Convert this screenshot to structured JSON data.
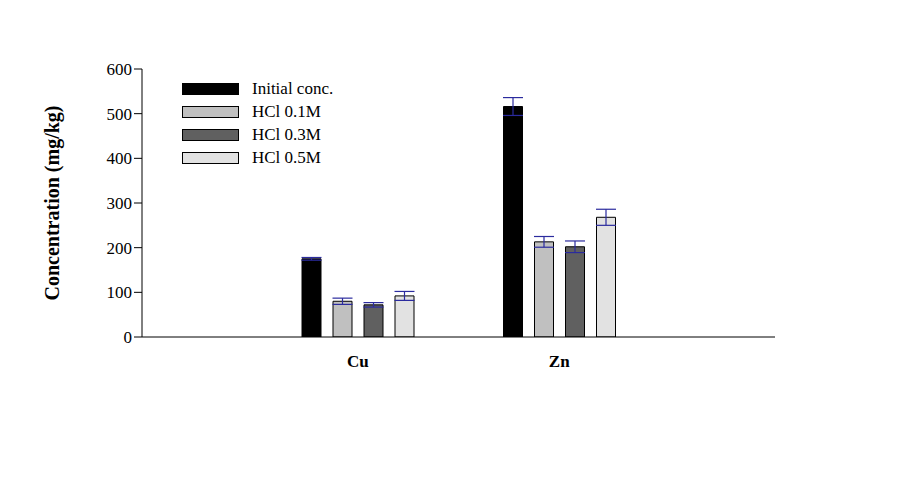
{
  "chart_data": {
    "type": "bar",
    "y_label": "Concentration (mg/kg)",
    "categories": [
      "Cu",
      "Zn"
    ],
    "series": [
      {
        "name": "Initial conc.",
        "color": "#000000",
        "values": [
          175,
          516
        ],
        "errors": [
          3,
          20
        ]
      },
      {
        "name": "HCl 0.1M",
        "color": "#c0c0c0",
        "values": [
          80,
          213
        ],
        "errors": [
          7,
          12
        ]
      },
      {
        "name": "HCl 0.3M",
        "color": "#606060",
        "values": [
          72,
          202
        ],
        "errors": [
          5,
          13
        ]
      },
      {
        "name": "HCl 0.5M",
        "color": "#e2e2e2",
        "values": [
          92,
          268
        ],
        "errors": [
          10,
          18
        ]
      }
    ],
    "ylim": [
      0,
      600
    ],
    "yticks": [
      0,
      100,
      200,
      300,
      400,
      500,
      600
    ],
    "grid": false,
    "legend": "upper left"
  }
}
